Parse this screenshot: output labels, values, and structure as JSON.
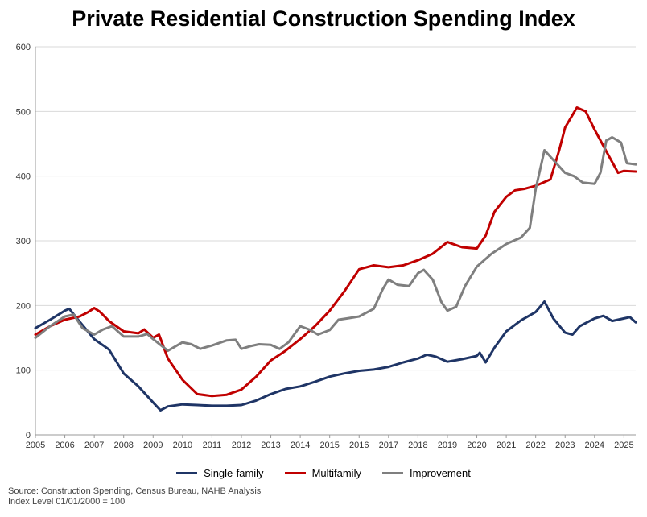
{
  "chart_data": {
    "type": "line",
    "title": "Private Residential Construction Spending Index",
    "xlabel": "",
    "ylabel": "",
    "xlim": [
      2005,
      2025.4
    ],
    "ylim": [
      0,
      600
    ],
    "y_ticks": [
      "0",
      "100",
      "200",
      "300",
      "400",
      "500",
      "600"
    ],
    "x_ticks": [
      "2005",
      "2006",
      "2007",
      "2008",
      "2009",
      "2010",
      "2011",
      "2012",
      "2013",
      "2014",
      "2015",
      "2016",
      "2017",
      "2018",
      "2019",
      "2020",
      "2021",
      "2022",
      "2023",
      "2024",
      "2025"
    ],
    "grid": true,
    "legend_position": "bottom",
    "series": [
      {
        "name": "Single-family",
        "color": "#1f3566",
        "points": [
          [
            2005,
            165
          ],
          [
            2005.5,
            178
          ],
          [
            2006,
            192
          ],
          [
            2006.15,
            195
          ],
          [
            2006.5,
            175
          ],
          [
            2007,
            148
          ],
          [
            2007.5,
            132
          ],
          [
            2008,
            95
          ],
          [
            2008.5,
            75
          ],
          [
            2009,
            50
          ],
          [
            2009.25,
            38
          ],
          [
            2009.5,
            44
          ],
          [
            2010,
            47
          ],
          [
            2010.5,
            46
          ],
          [
            2011,
            45
          ],
          [
            2011.5,
            45
          ],
          [
            2012,
            46
          ],
          [
            2012.5,
            53
          ],
          [
            2013,
            63
          ],
          [
            2013.5,
            71
          ],
          [
            2014,
            75
          ],
          [
            2014.5,
            82
          ],
          [
            2015,
            90
          ],
          [
            2015.5,
            95
          ],
          [
            2016,
            99
          ],
          [
            2016.5,
            101
          ],
          [
            2017,
            105
          ],
          [
            2017.5,
            112
          ],
          [
            2018,
            118
          ],
          [
            2018.3,
            124
          ],
          [
            2018.6,
            121
          ],
          [
            2019,
            113
          ],
          [
            2019.5,
            117
          ],
          [
            2020,
            122
          ],
          [
            2020.1,
            127
          ],
          [
            2020.3,
            112
          ],
          [
            2020.6,
            135
          ],
          [
            2021,
            160
          ],
          [
            2021.5,
            177
          ],
          [
            2022,
            190
          ],
          [
            2022.3,
            206
          ],
          [
            2022.6,
            180
          ],
          [
            2023,
            158
          ],
          [
            2023.25,
            155
          ],
          [
            2023.5,
            168
          ],
          [
            2024,
            180
          ],
          [
            2024.3,
            184
          ],
          [
            2024.6,
            176
          ],
          [
            2025,
            180
          ],
          [
            2025.2,
            182
          ],
          [
            2025.4,
            174
          ]
        ]
      },
      {
        "name": "Multifamily",
        "color": "#c00000",
        "points": [
          [
            2005,
            155
          ],
          [
            2005.5,
            168
          ],
          [
            2006,
            178
          ],
          [
            2006.5,
            183
          ],
          [
            2006.8,
            190
          ],
          [
            2007,
            196
          ],
          [
            2007.2,
            190
          ],
          [
            2007.5,
            176
          ],
          [
            2008,
            160
          ],
          [
            2008.5,
            157
          ],
          [
            2008.7,
            163
          ],
          [
            2009,
            150
          ],
          [
            2009.2,
            155
          ],
          [
            2009.5,
            118
          ],
          [
            2010,
            85
          ],
          [
            2010.5,
            63
          ],
          [
            2011,
            60
          ],
          [
            2011.5,
            62
          ],
          [
            2012,
            70
          ],
          [
            2012.5,
            90
          ],
          [
            2013,
            115
          ],
          [
            2013.5,
            130
          ],
          [
            2014,
            148
          ],
          [
            2014.5,
            168
          ],
          [
            2015,
            192
          ],
          [
            2015.5,
            222
          ],
          [
            2016,
            256
          ],
          [
            2016.5,
            262
          ],
          [
            2017,
            259
          ],
          [
            2017.5,
            262
          ],
          [
            2018,
            270
          ],
          [
            2018.5,
            280
          ],
          [
            2019,
            298
          ],
          [
            2019.5,
            290
          ],
          [
            2020,
            288
          ],
          [
            2020.3,
            308
          ],
          [
            2020.6,
            345
          ],
          [
            2021,
            368
          ],
          [
            2021.3,
            378
          ],
          [
            2021.6,
            380
          ],
          [
            2022,
            385
          ],
          [
            2022.5,
            395
          ],
          [
            2022.8,
            440
          ],
          [
            2023,
            475
          ],
          [
            2023.4,
            506
          ],
          [
            2023.7,
            500
          ],
          [
            2024,
            472
          ],
          [
            2024.5,
            430
          ],
          [
            2024.8,
            405
          ],
          [
            2025,
            408
          ],
          [
            2025.4,
            407
          ]
        ]
      },
      {
        "name": "Improvement",
        "color": "#7f7f7f",
        "points": [
          [
            2005,
            150
          ],
          [
            2005.5,
            168
          ],
          [
            2006,
            183
          ],
          [
            2006.3,
            186
          ],
          [
            2006.6,
            165
          ],
          [
            2007,
            155
          ],
          [
            2007.3,
            163
          ],
          [
            2007.6,
            168
          ],
          [
            2008,
            152
          ],
          [
            2008.5,
            152
          ],
          [
            2008.8,
            156
          ],
          [
            2009,
            148
          ],
          [
            2009.5,
            130
          ],
          [
            2010,
            143
          ],
          [
            2010.3,
            140
          ],
          [
            2010.6,
            133
          ],
          [
            2011,
            138
          ],
          [
            2011.5,
            146
          ],
          [
            2011.8,
            147
          ],
          [
            2012,
            133
          ],
          [
            2012.3,
            137
          ],
          [
            2012.6,
            140
          ],
          [
            2013,
            139
          ],
          [
            2013.3,
            133
          ],
          [
            2013.6,
            143
          ],
          [
            2014,
            168
          ],
          [
            2014.3,
            163
          ],
          [
            2014.6,
            155
          ],
          [
            2015,
            162
          ],
          [
            2015.3,
            178
          ],
          [
            2015.6,
            180
          ],
          [
            2016,
            183
          ],
          [
            2016.5,
            195
          ],
          [
            2016.8,
            225
          ],
          [
            2017,
            240
          ],
          [
            2017.3,
            232
          ],
          [
            2017.7,
            230
          ],
          [
            2018,
            250
          ],
          [
            2018.2,
            255
          ],
          [
            2018.5,
            240
          ],
          [
            2018.8,
            205
          ],
          [
            2019,
            192
          ],
          [
            2019.3,
            198
          ],
          [
            2019.6,
            230
          ],
          [
            2020,
            260
          ],
          [
            2020.5,
            280
          ],
          [
            2021,
            295
          ],
          [
            2021.5,
            305
          ],
          [
            2021.8,
            320
          ],
          [
            2022,
            380
          ],
          [
            2022.3,
            440
          ],
          [
            2022.6,
            425
          ],
          [
            2023,
            405
          ],
          [
            2023.3,
            400
          ],
          [
            2023.6,
            390
          ],
          [
            2024,
            388
          ],
          [
            2024.2,
            405
          ],
          [
            2024.4,
            455
          ],
          [
            2024.6,
            460
          ],
          [
            2024.9,
            452
          ],
          [
            2025.1,
            420
          ],
          [
            2025.4,
            418
          ]
        ]
      }
    ],
    "source_note": "Source: Construction Spending, Census Bureau, NAHB Analysis",
    "index_note": "Index Level 01/01/2000 = 100"
  }
}
